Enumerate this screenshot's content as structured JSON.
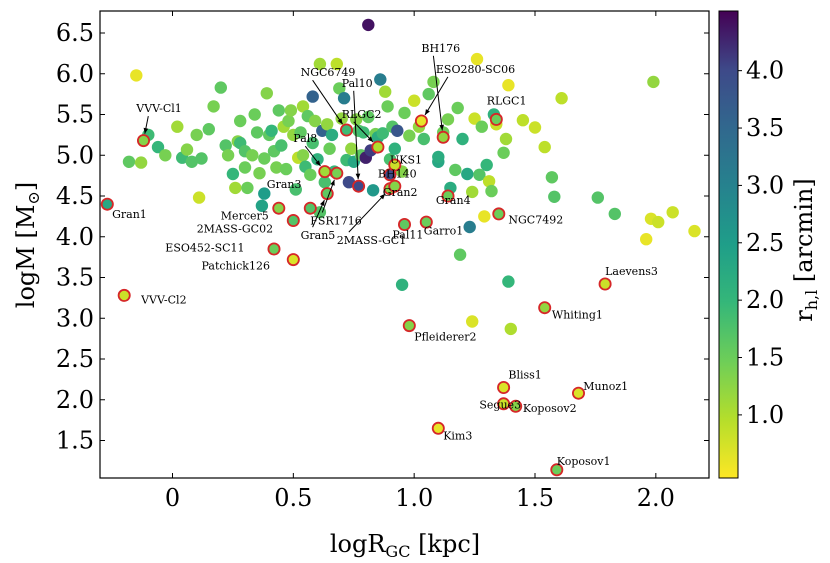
{
  "chart_data": {
    "type": "scatter",
    "xlabel": "logR_GC [kpc]",
    "ylabel": "logM [M_⊙]",
    "colorbar_label": "r_h,l [arcmin]",
    "xlim": [
      -0.3,
      2.22
    ],
    "ylim": [
      1.04,
      6.77
    ],
    "xticks": [
      0,
      0.5,
      1.0,
      1.5,
      2.0
    ],
    "xtick_labels": [
      "0",
      "0.5",
      "1.0",
      "1.5",
      "2.0"
    ],
    "yticks": [
      1.5,
      2.0,
      2.5,
      3.0,
      3.5,
      4.0,
      4.5,
      5.0,
      5.5,
      6.0,
      6.5
    ],
    "ytick_labels": [
      "1.5",
      "2.0",
      "2.5",
      "3.0",
      "3.5",
      "4.0",
      "4.5",
      "5.0",
      "5.5",
      "6.0",
      "6.5"
    ],
    "colorbar_range": [
      0.45,
      4.52
    ],
    "colorbar_ticks": [
      1.0,
      1.5,
      2.0,
      2.5,
      3.0,
      3.5,
      4.0
    ],
    "colorbar_tick_labels": [
      "1.0",
      "1.5",
      "2.0",
      "2.5",
      "3.0",
      "3.5",
      "4.0"
    ],
    "colormap": "viridis_r",
    "background_points": [
      [
        -0.18,
        4.92,
        1.6
      ],
      [
        -0.15,
        5.98,
        0.6
      ],
      [
        -0.13,
        4.91,
        1.2
      ],
      [
        -0.1,
        5.25,
        1.9
      ],
      [
        -0.06,
        5.1,
        2.0
      ],
      [
        -0.03,
        5.0,
        1.4
      ],
      [
        0.02,
        5.35,
        1.1
      ],
      [
        0.04,
        4.97,
        1.9
      ],
      [
        0.06,
        5.07,
        1.3
      ],
      [
        0.08,
        4.92,
        1.7
      ],
      [
        0.1,
        5.25,
        1.4
      ],
      [
        0.11,
        4.48,
        0.8
      ],
      [
        0.12,
        4.96,
        1.7
      ],
      [
        0.15,
        5.32,
        1.6
      ],
      [
        0.17,
        5.6,
        1.4
      ],
      [
        0.2,
        5.83,
        1.6
      ],
      [
        0.22,
        5.12,
        1.7
      ],
      [
        0.23,
        5.0,
        1.4
      ],
      [
        0.25,
        4.77,
        2.0
      ],
      [
        0.26,
        4.6,
        1.1
      ],
      [
        0.27,
        5.17,
        1.3
      ],
      [
        0.28,
        5.42,
        1.5
      ],
      [
        0.28,
        5.15,
        1.9
      ],
      [
        0.3,
        4.85,
        1.5
      ],
      [
        0.3,
        5.05,
        1.7
      ],
      [
        0.31,
        4.6,
        1.5
      ],
      [
        0.33,
        5.0,
        1.4
      ],
      [
        0.34,
        5.5,
        1.5
      ],
      [
        0.35,
        5.28,
        1.6
      ],
      [
        0.36,
        4.78,
        1.4
      ],
      [
        0.37,
        4.38,
        2.4
      ],
      [
        0.38,
        4.53,
        2.5
      ],
      [
        0.38,
        4.96,
        1.5
      ],
      [
        0.39,
        5.76,
        1.3
      ],
      [
        0.4,
        5.25,
        1.6
      ],
      [
        0.41,
        5.3,
        2.0
      ],
      [
        0.42,
        5.05,
        1.6
      ],
      [
        0.43,
        4.85,
        1.4
      ],
      [
        0.44,
        5.55,
        1.6
      ],
      [
        0.45,
        5.12,
        1.8
      ],
      [
        0.46,
        5.35,
        1.1
      ],
      [
        0.47,
        4.83,
        1.5
      ],
      [
        0.48,
        5.42,
        1.4
      ],
      [
        0.49,
        5.55,
        1.3
      ],
      [
        0.5,
        5.25,
        1.2
      ],
      [
        0.51,
        4.58,
        1.8
      ],
      [
        0.52,
        4.97,
        0.9
      ],
      [
        0.53,
        5.28,
        1.6
      ],
      [
        0.54,
        5.0,
        1.3
      ],
      [
        0.54,
        5.6,
        1.1
      ],
      [
        0.55,
        4.86,
        1.9
      ],
      [
        0.56,
        5.48,
        1.6
      ],
      [
        0.57,
        4.76,
        1.5
      ],
      [
        0.58,
        5.15,
        1.8
      ],
      [
        0.58,
        5.72,
        3.6
      ],
      [
        0.59,
        5.42,
        1.3
      ],
      [
        0.6,
        4.95,
        2.1
      ],
      [
        0.61,
        4.3,
        1.7
      ],
      [
        0.61,
        6.12,
        1.1
      ],
      [
        0.62,
        5.3,
        3.6
      ],
      [
        0.63,
        4.67,
        1.8
      ],
      [
        0.64,
        5.38,
        1.2
      ],
      [
        0.65,
        5.08,
        1.5
      ],
      [
        0.66,
        5.25,
        2.2
      ],
      [
        0.67,
        4.8,
        2.0
      ],
      [
        0.68,
        6.12,
        0.9
      ],
      [
        0.69,
        5.82,
        1.5
      ],
      [
        0.7,
        5.45,
        1.2
      ],
      [
        0.71,
        5.7,
        3.1
      ],
      [
        0.72,
        4.94,
        1.9
      ],
      [
        0.73,
        4.67,
        4.0
      ],
      [
        0.74,
        5.08,
        1.2
      ],
      [
        0.75,
        4.92,
        2.3
      ],
      [
        0.76,
        5.44,
        1.3
      ],
      [
        0.77,
        5.3,
        1.7
      ],
      [
        0.78,
        5.0,
        1.6
      ],
      [
        0.79,
        5.28,
        1.9
      ],
      [
        0.8,
        4.97,
        4.3
      ],
      [
        0.81,
        6.6,
        4.4
      ],
      [
        0.81,
        5.47,
        1.6
      ],
      [
        0.82,
        5.06,
        4.1
      ],
      [
        0.83,
        4.57,
        2.6
      ],
      [
        0.84,
        5.26,
        1.4
      ],
      [
        0.85,
        5.22,
        2.2
      ],
      [
        0.86,
        5.93,
        3.1
      ],
      [
        0.87,
        5.27,
        1.9
      ],
      [
        0.88,
        5.78,
        1.1
      ],
      [
        0.89,
        5.6,
        1.5
      ],
      [
        0.9,
        4.95,
        1.8
      ],
      [
        0.91,
        5.35,
        1.7
      ],
      [
        0.92,
        5.08,
        2.1
      ],
      [
        0.93,
        5.3,
        3.8
      ],
      [
        0.95,
        4.8,
        1.3
      ],
      [
        0.96,
        5.52,
        1.5
      ],
      [
        0.98,
        5.24,
        1.4
      ],
      [
        1.0,
        5.67,
        0.8
      ],
      [
        1.02,
        5.35,
        1.2
      ],
      [
        1.04,
        5.2,
        1.8
      ],
      [
        1.06,
        5.75,
        1.6
      ],
      [
        1.08,
        5.9,
        1.4
      ],
      [
        1.1,
        4.92,
        2.3
      ],
      [
        1.1,
        4.98,
        2.2
      ],
      [
        1.12,
        5.28,
        1.5
      ],
      [
        1.14,
        5.44,
        1.4
      ],
      [
        1.15,
        4.6,
        2.2
      ],
      [
        1.17,
        4.82,
        1.6
      ],
      [
        1.18,
        5.58,
        1.5
      ],
      [
        1.19,
        3.78,
        1.6
      ],
      [
        1.2,
        5.2,
        2.1
      ],
      [
        1.22,
        4.77,
        2.3
      ],
      [
        1.23,
        4.12,
        3.1
      ],
      [
        1.24,
        4.55,
        1.1
      ],
      [
        1.25,
        5.45,
        0.8
      ],
      [
        1.26,
        6.18,
        0.6
      ],
      [
        1.27,
        4.76,
        1.7
      ],
      [
        1.28,
        5.35,
        1.5
      ],
      [
        1.29,
        4.25,
        0.6
      ],
      [
        1.3,
        4.88,
        2.0
      ],
      [
        1.31,
        4.68,
        0.9
      ],
      [
        1.32,
        4.56,
        1.5
      ],
      [
        1.33,
        5.5,
        2.1
      ],
      [
        1.34,
        5.38,
        0.8
      ],
      [
        1.37,
        5.03,
        1.5
      ],
      [
        1.38,
        5.2,
        1.1
      ],
      [
        1.39,
        5.86,
        0.6
      ],
      [
        1.4,
        2.87,
        1.0
      ],
      [
        1.24,
        2.96,
        0.7
      ],
      [
        1.39,
        3.45,
        2.0
      ],
      [
        0.95,
        3.41,
        2.1
      ],
      [
        1.45,
        5.43,
        0.9
      ],
      [
        1.5,
        5.34,
        0.8
      ],
      [
        1.54,
        5.1,
        0.9
      ],
      [
        1.57,
        4.73,
        1.6
      ],
      [
        1.58,
        4.49,
        1.7
      ],
      [
        1.61,
        5.7,
        0.9
      ],
      [
        1.76,
        4.48,
        1.7
      ],
      [
        1.83,
        4.28,
        1.7
      ],
      [
        1.96,
        3.97,
        0.6
      ],
      [
        1.98,
        4.22,
        0.7
      ],
      [
        1.99,
        5.9,
        1.2
      ],
      [
        2.01,
        4.18,
        0.8
      ],
      [
        2.07,
        4.3,
        0.8
      ],
      [
        2.16,
        4.07,
        0.7
      ]
    ],
    "highlighted_points": [
      {
        "label": "VVV-Cl1",
        "x": -0.12,
        "y": 5.18,
        "r": 1.3
      },
      {
        "label": "Gran1",
        "x": -0.27,
        "y": 4.4,
        "r": 2.3
      },
      {
        "label": "VVV-Cl2",
        "x": -0.2,
        "y": 3.28,
        "r": 0.8
      },
      {
        "label": "Mercer5",
        "x": 0.44,
        "y": 4.35,
        "r": 1.3
      },
      {
        "label": "2MASS-GC02",
        "x": 0.5,
        "y": 4.2,
        "r": 1.7
      },
      {
        "label": "ESO452-SC11",
        "x": 0.42,
        "y": 3.85,
        "r": 1.5
      },
      {
        "label": "Patchick126",
        "x": 0.5,
        "y": 3.72,
        "r": 0.7
      },
      {
        "label": "Gran3",
        "x": 0.57,
        "y": 4.35,
        "r": 1.7
      },
      {
        "label": "Gran5",
        "x": 0.64,
        "y": 4.53,
        "r": 1.6
      },
      {
        "label": "Pal8",
        "x": 0.63,
        "y": 4.8,
        "r": 1.1
      },
      {
        "label": "FSR1716",
        "x": 0.68,
        "y": 4.78,
        "r": 1.4
      },
      {
        "label": "NGC6749",
        "x": 0.72,
        "y": 5.31,
        "r": 1.9
      },
      {
        "label": "Pal10",
        "x": 0.77,
        "y": 4.62,
        "r": 4.0
      },
      {
        "label": "2MASS-GC1",
        "x": 0.9,
        "y": 4.59,
        "r": 1.3
      },
      {
        "label": "RLGC2",
        "x": 0.85,
        "y": 5.1,
        "r": 1.0
      },
      {
        "label": "UKS1",
        "x": 0.92,
        "y": 4.88,
        "r": 0.8
      },
      {
        "label": "BH140",
        "x": 0.9,
        "y": 4.76,
        "r": 4.0
      },
      {
        "label": "Gran2",
        "x": 0.92,
        "y": 4.62,
        "r": 1.3
      },
      {
        "label": "Pal11",
        "x": 0.96,
        "y": 4.15,
        "r": 1.6
      },
      {
        "label": "Garro1",
        "x": 1.05,
        "y": 4.18,
        "r": 1.5
      },
      {
        "label": "BH176",
        "x": 1.12,
        "y": 5.22,
        "r": 1.2
      },
      {
        "label": "ESO280-SC06",
        "x": 1.03,
        "y": 5.42,
        "r": 0.6
      },
      {
        "label": "Gran4",
        "x": 1.14,
        "y": 4.5,
        "r": 1.5
      },
      {
        "label": "RLGC1",
        "x": 1.34,
        "y": 5.44,
        "r": 1.5
      },
      {
        "label": "NGC7492",
        "x": 1.35,
        "y": 4.28,
        "r": 1.5
      },
      {
        "label": "Laevens3",
        "x": 1.79,
        "y": 3.42,
        "r": 0.8
      },
      {
        "label": "Whiting1",
        "x": 1.54,
        "y": 3.13,
        "r": 1.2
      },
      {
        "label": "Pfleiderer2",
        "x": 0.98,
        "y": 2.91,
        "r": 1.3
      },
      {
        "label": "Bliss1",
        "x": 1.37,
        "y": 2.15,
        "r": 0.7
      },
      {
        "label": "Munoz1",
        "x": 1.68,
        "y": 2.08,
        "r": 0.7
      },
      {
        "label": "Segue3",
        "x": 1.37,
        "y": 1.95,
        "r": 0.8
      },
      {
        "label": "Koposov2",
        "x": 1.42,
        "y": 1.92,
        "r": 1.3
      },
      {
        "label": "Kim3",
        "x": 1.1,
        "y": 1.65,
        "r": 0.6
      },
      {
        "label": "Koposov1",
        "x": 1.59,
        "y": 1.14,
        "r": 1.5
      }
    ],
    "annotations": [
      {
        "label": "VVV-Cl1",
        "text_x": -0.15,
        "text_y": 5.53,
        "arrow": true
      },
      {
        "label": "Gran1",
        "text_x": -0.25,
        "text_y": 4.23,
        "arrow": false
      },
      {
        "label": "VVV-Cl2",
        "text_x": -0.13,
        "text_y": 3.18,
        "arrow": false
      },
      {
        "label": "Mercer5",
        "text_x": 0.2,
        "text_y": 4.21,
        "arrow": false
      },
      {
        "label": "2MASS-GC02",
        "text_x": 0.1,
        "text_y": 4.05,
        "arrow": false
      },
      {
        "label": "ESO452-SC11",
        "text_x": -0.03,
        "text_y": 3.82,
        "arrow": false
      },
      {
        "label": "Patchick126",
        "text_x": 0.12,
        "text_y": 3.6,
        "arrow": false
      },
      {
        "label": "Gran3",
        "text_x": 0.39,
        "text_y": 4.6,
        "arrow": false
      },
      {
        "label": "Gran5",
        "text_x": 0.53,
        "text_y": 3.97,
        "arrow": true
      },
      {
        "label": "Pal8",
        "text_x": 0.5,
        "text_y": 5.16,
        "arrow": true
      },
      {
        "label": "FSR1716",
        "text_x": 0.57,
        "text_y": 4.15,
        "arrow": true
      },
      {
        "label": "NGC6749",
        "text_x": 0.53,
        "text_y": 5.97,
        "arrow": true
      },
      {
        "label": "Pal10",
        "text_x": 0.7,
        "text_y": 5.84,
        "arrow": true
      },
      {
        "label": "RLGC2",
        "text_x": 0.7,
        "text_y": 5.46,
        "arrow": true
      },
      {
        "label": "2MASS-GC1",
        "text_x": 0.68,
        "text_y": 3.91,
        "arrow": true
      },
      {
        "label": "UKS1",
        "text_x": 0.9,
        "text_y": 4.9,
        "arrow": false
      },
      {
        "label": "BH140",
        "text_x": 0.85,
        "text_y": 4.73,
        "arrow": false
      },
      {
        "label": "Gran2",
        "text_x": 0.87,
        "text_y": 4.5,
        "arrow": false
      },
      {
        "label": "Pal11",
        "text_x": 0.91,
        "text_y": 3.98,
        "arrow": false
      },
      {
        "label": "Garro1",
        "text_x": 1.04,
        "text_y": 4.03,
        "arrow": false
      },
      {
        "label": "BH176",
        "text_x": 1.03,
        "text_y": 6.27,
        "arrow": true
      },
      {
        "label": "ESO280-SC06",
        "text_x": 1.09,
        "text_y": 6.01,
        "arrow": true
      },
      {
        "label": "Gran4",
        "text_x": 1.09,
        "text_y": 4.4,
        "arrow": false
      },
      {
        "label": "RLGC1",
        "text_x": 1.3,
        "text_y": 5.62,
        "arrow": false
      },
      {
        "label": "NGC7492",
        "text_x": 1.39,
        "text_y": 4.16,
        "arrow": false
      },
      {
        "label": "Laevens3",
        "text_x": 1.79,
        "text_y": 3.53,
        "arrow": false
      },
      {
        "label": "Whiting1",
        "text_x": 1.57,
        "text_y": 3.0,
        "arrow": false
      },
      {
        "label": "Pfleiderer2",
        "text_x": 1.0,
        "text_y": 2.73,
        "arrow": false
      },
      {
        "label": "Bliss1",
        "text_x": 1.39,
        "text_y": 2.26,
        "arrow": false
      },
      {
        "label": "Munoz1",
        "text_x": 1.7,
        "text_y": 2.12,
        "arrow": false
      },
      {
        "label": "Segue3",
        "text_x": 1.27,
        "text_y": 1.89,
        "arrow": false
      },
      {
        "label": "Koposov2",
        "text_x": 1.45,
        "text_y": 1.85,
        "arrow": false
      },
      {
        "label": "Kim3",
        "text_x": 1.12,
        "text_y": 1.51,
        "arrow": false
      },
      {
        "label": "Koposov1",
        "text_x": 1.59,
        "text_y": 1.2,
        "arrow": false
      }
    ],
    "colors": {
      "highlight_edge": "#d62728",
      "axis": "#000000"
    }
  }
}
